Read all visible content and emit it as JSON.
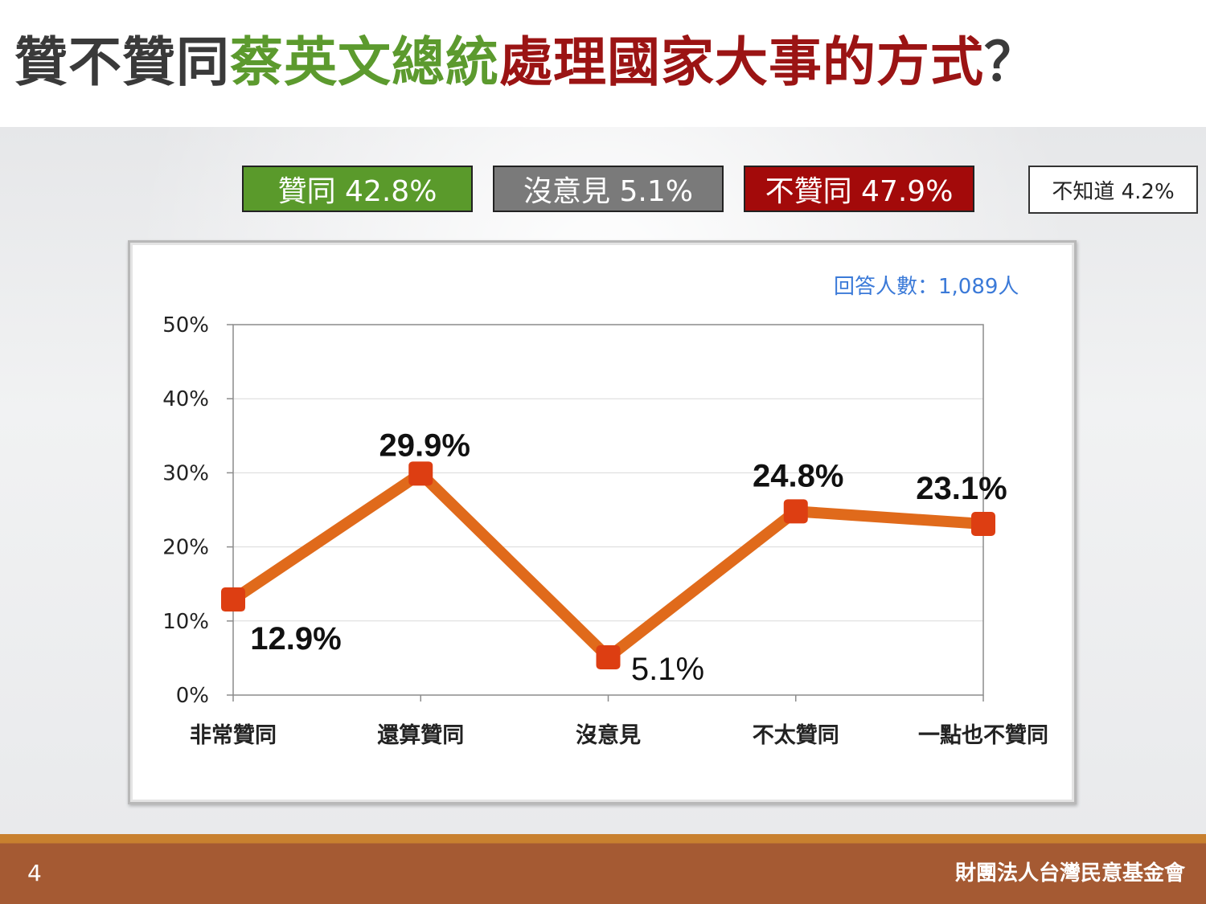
{
  "title": {
    "part1": "贊不贊同",
    "part2": "蔡英文總統",
    "part3": "處理國家大事的方式",
    "part4": "？"
  },
  "summary": {
    "agree": "贊同 42.8%",
    "neutral": "沒意見 5.1%",
    "disagree": "不贊同 47.9%",
    "unknown": "不知道 4.2%"
  },
  "respondents": "回答人數：1,089人",
  "footer": {
    "page": "4",
    "org": "財團法人台灣民意基金會"
  },
  "colors": {
    "line": "#e06a1b",
    "marker": "#dd3e12",
    "agree": "#5a9a2b",
    "neutral": "#7a7a7a",
    "disagree": "#a30a0a"
  },
  "chart_data": {
    "type": "line",
    "categories": [
      "非常贊同",
      "還算贊同",
      "沒意見",
      "不太贊同",
      "一點也不贊同"
    ],
    "values": [
      12.9,
      29.9,
      5.1,
      24.8,
      23.1
    ],
    "data_labels": [
      "12.9%",
      "29.9%",
      "5.1%",
      "24.8%",
      "23.1%"
    ],
    "ylim": [
      0,
      50
    ],
    "yticks": [
      "0%",
      "10%",
      "20%",
      "30%",
      "40%",
      "50%"
    ],
    "ytick_values": [
      0,
      10,
      20,
      30,
      40,
      50
    ],
    "grid": true,
    "legend": "none"
  }
}
